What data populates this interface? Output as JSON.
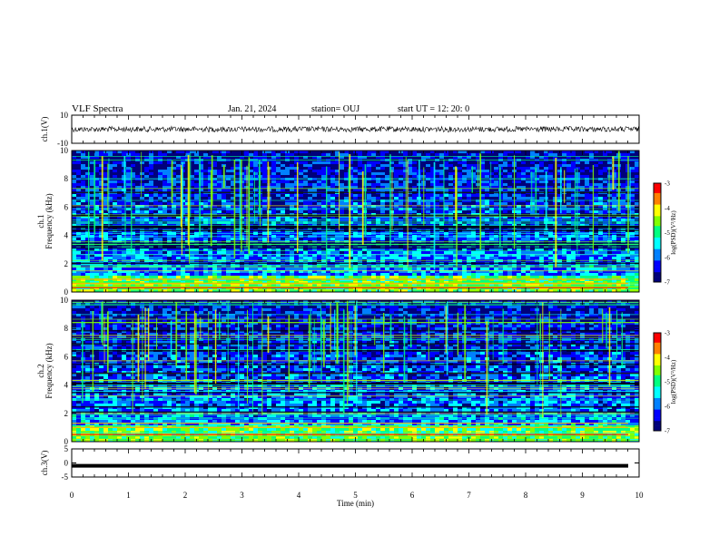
{
  "header": {
    "title": "VLF Spectra",
    "date": "Jan. 21, 2024",
    "station": "station= OUJ",
    "start": "start UT =  12: 20: 0"
  },
  "chart_data": [
    {
      "type": "line",
      "panel": "ch1-waveform",
      "ylabel": "ch.1(V)",
      "ylim": [
        -10,
        10
      ],
      "yticks": [
        "10",
        "-10"
      ],
      "xlim": [
        0,
        10
      ],
      "series_note": "noisy waveform centred near 0 V, amplitude about ±1 V"
    },
    {
      "type": "heatmap",
      "panel": "ch1-spectrogram",
      "ylabel": "ch.1\nFrequency (kHz)",
      "ylim": [
        0,
        10
      ],
      "yticks": [
        "0",
        "2",
        "4",
        "6",
        "8",
        "10"
      ],
      "xlim": [
        0,
        10
      ],
      "colorbar": {
        "label": "log(PSD)(V²/Hz)",
        "ticks": [
          "-3",
          "-4",
          "-5",
          "-6",
          "-7"
        ],
        "range": [
          -7,
          -3
        ]
      }
    },
    {
      "type": "heatmap",
      "panel": "ch2-spectrogram",
      "ylabel": "ch.2\nFrequency (kHz)",
      "ylim": [
        0,
        10
      ],
      "yticks": [
        "0",
        "2",
        "4",
        "6",
        "8",
        "10"
      ],
      "xlim": [
        0,
        10
      ],
      "colorbar": {
        "label": "log(PSD)(V²/Hz)",
        "ticks": [
          "-3",
          "-4",
          "-5",
          "-6",
          "-7"
        ],
        "range": [
          -7,
          -3
        ]
      }
    },
    {
      "type": "line",
      "panel": "ch3-waveform",
      "ylabel": "ch.3(V)",
      "ylim": [
        -5,
        5
      ],
      "yticks": [
        "5",
        "0",
        "-5"
      ],
      "xlim": [
        0,
        10
      ],
      "xlabel": "Time (min)",
      "xticks": [
        "0",
        "1",
        "2",
        "3",
        "4",
        "5",
        "6",
        "7",
        "8",
        "9",
        "10"
      ],
      "series_note": "near-constant signal around -1 V"
    }
  ],
  "colors": {
    "colormap": [
      "#00007a",
      "#0000ff",
      "#0080ff",
      "#00ffff",
      "#00ff80",
      "#80ff00",
      "#ffff00",
      "#ff8000",
      "#ff0000",
      "#ffffff"
    ],
    "trace": "#000000"
  }
}
